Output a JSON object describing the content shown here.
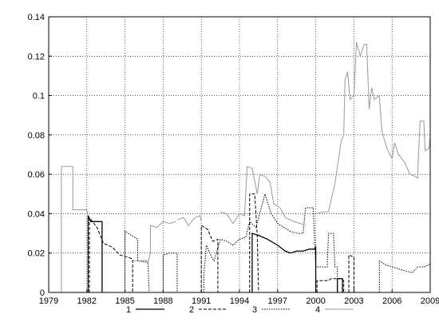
{
  "chart_data": {
    "type": "line",
    "title": "",
    "xlabel": "",
    "ylabel": "",
    "xlim": [
      1979,
      2009
    ],
    "ylim": [
      0,
      0.14
    ],
    "grid": true,
    "legend_position": "bottom-center",
    "x_ticks": [
      "1979",
      "1982",
      "1985",
      "1988",
      "1991",
      "1994",
      "1997",
      "2000",
      "2003",
      "2006",
      "2009"
    ],
    "y_ticks": [
      "0",
      "0.02",
      "0.04",
      "0.06",
      "0.08",
      "0.1",
      "0.12",
      "0.14"
    ],
    "series": [
      {
        "name": "1",
        "dash": "solid",
        "color": "#000000",
        "width": 1.3,
        "segments": [
          [
            [
              1982.1,
              0
            ],
            [
              1982.1,
              0.039
            ],
            [
              1982.3,
              0.036
            ],
            [
              1983.2,
              0.036
            ],
            [
              1983.2,
              0
            ]
          ],
          [
            [
              1995.0,
              0
            ],
            [
              1995.0,
              0.03
            ],
            [
              1995.5,
              0.029
            ],
            [
              1996.2,
              0.027
            ],
            [
              1997.0,
              0.024
            ],
            [
              1997.6,
              0.021
            ],
            [
              1998.0,
              0.02
            ],
            [
              1998.5,
              0.021
            ],
            [
              1999.0,
              0.021
            ],
            [
              1999.5,
              0.022
            ],
            [
              1999.9,
              0.022
            ],
            [
              2000.0,
              0.023
            ],
            [
              2000.0,
              0
            ]
          ],
          [
            [
              2001.7,
              0
            ],
            [
              2001.7,
              0.007
            ],
            [
              2002.1,
              0.007
            ],
            [
              2002.1,
              0
            ]
          ]
        ]
      },
      {
        "name": "2",
        "dash": "dashed",
        "color": "#000000",
        "width": 1,
        "segments": [
          [
            [
              1982.2,
              0
            ],
            [
              1982.2,
              0.038
            ],
            [
              1982.8,
              0.033
            ],
            [
              1983.3,
              0.025
            ],
            [
              1984.0,
              0.023
            ],
            [
              1984.6,
              0.019
            ],
            [
              1985.2,
              0.018
            ],
            [
              1985.6,
              0.017
            ],
            [
              1985.6,
              0
            ]
          ],
          [
            [
              1991.0,
              0
            ],
            [
              1991.0,
              0.034
            ],
            [
              1991.5,
              0.032
            ],
            [
              1991.9,
              0.026
            ],
            [
              1992.3,
              0.027
            ],
            [
              1992.3,
              0
            ]
          ],
          [
            [
              1994.8,
              0
            ],
            [
              1994.8,
              0.05
            ],
            [
              1995.2,
              0.05
            ],
            [
              1995.4,
              0.029
            ],
            [
              1995.5,
              0
            ]
          ],
          [
            [
              2000.1,
              0
            ],
            [
              2000.1,
              0.006
            ],
            [
              2001.0,
              0.006
            ],
            [
              2001.2,
              0.007
            ],
            [
              2002.0,
              0.007
            ],
            [
              2002.2,
              0.006
            ],
            [
              2002.2,
              0
            ]
          ],
          [
            [
              2002.6,
              0
            ],
            [
              2002.6,
              0.019
            ],
            [
              2003.0,
              0.018
            ],
            [
              2003.0,
              0
            ]
          ]
        ]
      },
      {
        "name": "3",
        "dash": "dotted",
        "color": "#000000",
        "width": 1,
        "segments": [
          [
            [
              1985.0,
              0
            ],
            [
              1985.0,
              0.031
            ],
            [
              1985.5,
              0.029
            ],
            [
              1986.0,
              0.027
            ],
            [
              1986.0,
              0.016
            ],
            [
              1986.8,
              0.016
            ],
            [
              1986.9,
              0
            ]
          ],
          [
            [
              1988.0,
              0
            ],
            [
              1988.0,
              0.019
            ],
            [
              1988.5,
              0.02
            ],
            [
              1989.1,
              0.02
            ],
            [
              1989.1,
              0
            ]
          ],
          [
            [
              1991.2,
              0
            ],
            [
              1991.2,
              0.009
            ],
            [
              1991.4,
              0.024
            ],
            [
              1991.8,
              0.018
            ],
            [
              1992.0,
              0.016
            ],
            [
              1992.5,
              0.027
            ],
            [
              1993.0,
              0.026
            ],
            [
              1993.5,
              0.024
            ],
            [
              1994.0,
              0.027
            ],
            [
              1994.5,
              0.028
            ],
            [
              1994.8,
              0.036
            ],
            [
              1995.3,
              0.033
            ],
            [
              1996.0,
              0.05
            ],
            [
              1996.5,
              0.04
            ],
            [
              1997.0,
              0.035
            ],
            [
              1997.5,
              0.033
            ],
            [
              1998.0,
              0.031
            ],
            [
              1998.6,
              0.03
            ],
            [
              1999.0,
              0.03
            ],
            [
              1999.2,
              0.043
            ],
            [
              1999.8,
              0.043
            ],
            [
              2000.0,
              0.013
            ],
            [
              2000.5,
              0.013
            ],
            [
              2000.9,
              0.013
            ],
            [
              2001.0,
              0.03
            ],
            [
              2001.4,
              0.03
            ],
            [
              2001.5,
              0.013
            ],
            [
              2001.7,
              0.013
            ],
            [
              2001.7,
              0
            ]
          ],
          [
            [
              2005.0,
              0
            ],
            [
              2005.0,
              0.016
            ],
            [
              2005.5,
              0.014
            ],
            [
              2006.5,
              0.012
            ],
            [
              2007.0,
              0.011
            ],
            [
              2007.6,
              0.01
            ],
            [
              2008.0,
              0.013
            ],
            [
              2008.5,
              0.013
            ],
            [
              2008.9,
              0.014
            ],
            [
              2009.0,
              0.015
            ]
          ]
        ]
      },
      {
        "name": "4",
        "dash": "solid",
        "color": "#9a9a9a",
        "width": 1,
        "segments": [
          [
            [
              1980.0,
              0
            ],
            [
              1980.0,
              0.064
            ],
            [
              1980.9,
              0.064
            ],
            [
              1980.9,
              0.042
            ],
            [
              1982.0,
              0.042
            ],
            [
              1982.1,
              0.039
            ]
          ],
          [
            [
              1985.6,
              0.016
            ],
            [
              1986.0,
              0.016
            ],
            [
              1986.8,
              0.015
            ],
            [
              1987.0,
              0.02
            ],
            [
              1987.0,
              0.034
            ],
            [
              1987.5,
              0.033
            ],
            [
              1988.0,
              0.036
            ],
            [
              1988.5,
              0.035
            ],
            [
              1989.0,
              0.036
            ]
          ],
          [
            [
              1989.1,
              0.037
            ],
            [
              1989.6,
              0.038
            ],
            [
              1990.0,
              0.034
            ],
            [
              1990.5,
              0.038
            ],
            [
              1990.9,
              0.039
            ],
            [
              1991.0,
              0.036
            ]
          ],
          [
            [
              1992.5,
              0.041
            ],
            [
              1993.0,
              0.04
            ],
            [
              1993.5,
              0.035
            ],
            [
              1994.0,
              0.04
            ],
            [
              1994.4,
              0.039
            ],
            [
              1994.6,
              0.064
            ],
            [
              1995.0,
              0.063
            ],
            [
              1995.4,
              0.05
            ],
            [
              1995.6,
              0.06
            ],
            [
              1996.0,
              0.059
            ],
            [
              1996.4,
              0.056
            ],
            [
              1996.7,
              0.045
            ],
            [
              1997.2,
              0.043
            ],
            [
              1997.6,
              0.038
            ],
            [
              1998.3,
              0.036
            ],
            [
              1998.8,
              0.035
            ],
            [
              1999.2,
              0.034
            ]
          ],
          [
            [
              2000.0,
              0.04
            ],
            [
              2000.7,
              0.041
            ],
            [
              2001.0,
              0.041
            ],
            [
              2001.5,
              0.055
            ],
            [
              2001.8,
              0.068
            ],
            [
              2002.0,
              0.077
            ],
            [
              2002.2,
              0.08
            ],
            [
              2002.3,
              0.108
            ],
            [
              2002.5,
              0.112
            ],
            [
              2002.7,
              0.098
            ],
            [
              2003.0,
              0.1
            ],
            [
              2003.2,
              0.127
            ],
            [
              2003.5,
              0.12
            ],
            [
              2003.8,
              0.126
            ],
            [
              2004.0,
              0.126
            ],
            [
              2004.2,
              0.093
            ],
            [
              2004.4,
              0.104
            ],
            [
              2004.6,
              0.098
            ],
            [
              2005.0,
              0.1
            ],
            [
              2005.2,
              0.082
            ],
            [
              2005.6,
              0.073
            ],
            [
              2006.0,
              0.068
            ],
            [
              2006.2,
              0.076
            ],
            [
              2006.5,
              0.07
            ],
            [
              2007.0,
              0.066
            ],
            [
              2007.4,
              0.06
            ],
            [
              2007.8,
              0.059
            ],
            [
              2008.0,
              0.058
            ],
            [
              2008.2,
              0.087
            ],
            [
              2008.5,
              0.087
            ],
            [
              2008.6,
              0.072
            ],
            [
              2008.9,
              0.073
            ],
            [
              2009.0,
              0.079
            ]
          ]
        ]
      }
    ]
  }
}
